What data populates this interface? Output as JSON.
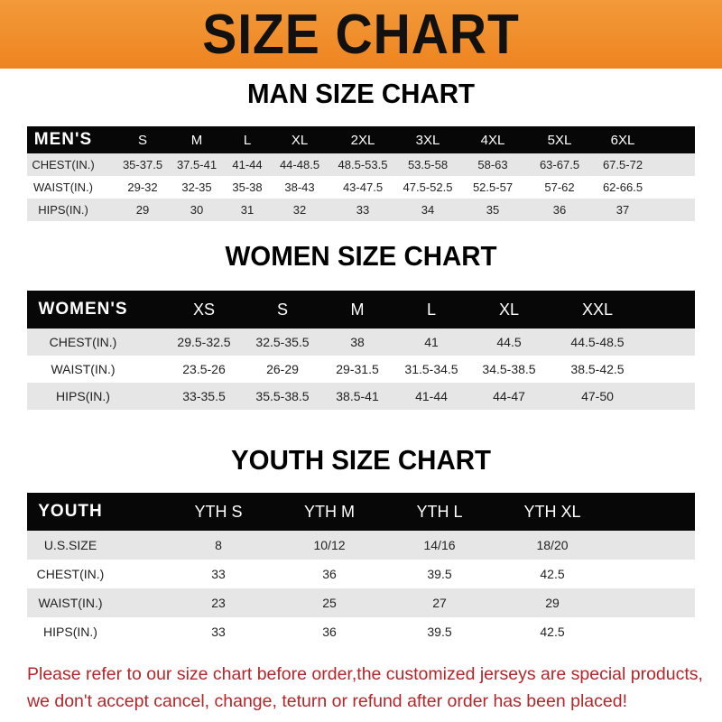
{
  "banner_title": "SIZE CHART",
  "men": {
    "title": "MAN SIZE CHART",
    "header": [
      "MEN'S",
      "S",
      "M",
      "L",
      "XL",
      "2XL",
      "3XL",
      "4XL",
      "5XL",
      "6XL"
    ],
    "rows": [
      [
        "CHEST(IN.)",
        "35-37.5",
        "37.5-41",
        "41-44",
        "44-48.5",
        "48.5-53.5",
        "53.5-58",
        "58-63",
        "63-67.5",
        "67.5-72"
      ],
      [
        "WAIST(IN.)",
        "29-32",
        "32-35",
        "35-38",
        "38-43",
        "43-47.5",
        "47.5-52.5",
        "52.5-57",
        "57-62",
        "62-66.5"
      ],
      [
        "HIPS(IN.)",
        "29",
        "30",
        "31",
        "32",
        "33",
        "34",
        "35",
        "36",
        "37"
      ]
    ]
  },
  "women": {
    "title": "WOMEN SIZE CHART",
    "header": [
      "WOMEN'S",
      "XS",
      "S",
      "M",
      "L",
      "XL",
      "XXL"
    ],
    "rows": [
      [
        "CHEST(IN.)",
        "29.5-32.5",
        "32.5-35.5",
        "38",
        "41",
        "44.5",
        "44.5-48.5"
      ],
      [
        "WAIST(IN.)",
        "23.5-26",
        "26-29",
        "29-31.5",
        "31.5-34.5",
        "34.5-38.5",
        "38.5-42.5"
      ],
      [
        "HIPS(IN.)",
        "33-35.5",
        "35.5-38.5",
        "38.5-41",
        "41-44",
        "44-47",
        "47-50"
      ]
    ]
  },
  "youth": {
    "title": "YOUTH SIZE CHART",
    "header": [
      "YOUTH",
      "YTH S",
      "YTH M",
      "YTH L",
      "YTH XL"
    ],
    "rows": [
      [
        "U.S.SIZE",
        "8",
        "10/12",
        "14/16",
        "18/20"
      ],
      [
        "CHEST(IN.)",
        "33",
        "36",
        "39.5",
        "42.5"
      ],
      [
        "WAIST(IN.)",
        "23",
        "25",
        "27",
        "29"
      ],
      [
        "HIPS(IN.)",
        "33",
        "36",
        "39.5",
        "42.5"
      ]
    ]
  },
  "notice": {
    "line1": "Please refer to our size chart before order,the customized jerseys are special products,",
    "line2": "we don't accept cancel, change, teturn or refund after order has been placed!"
  },
  "colors": {
    "banner": "#ee8420",
    "header_bg": "#070707",
    "row_gray": "#e6e6e6",
    "notice": "#b3262a"
  }
}
